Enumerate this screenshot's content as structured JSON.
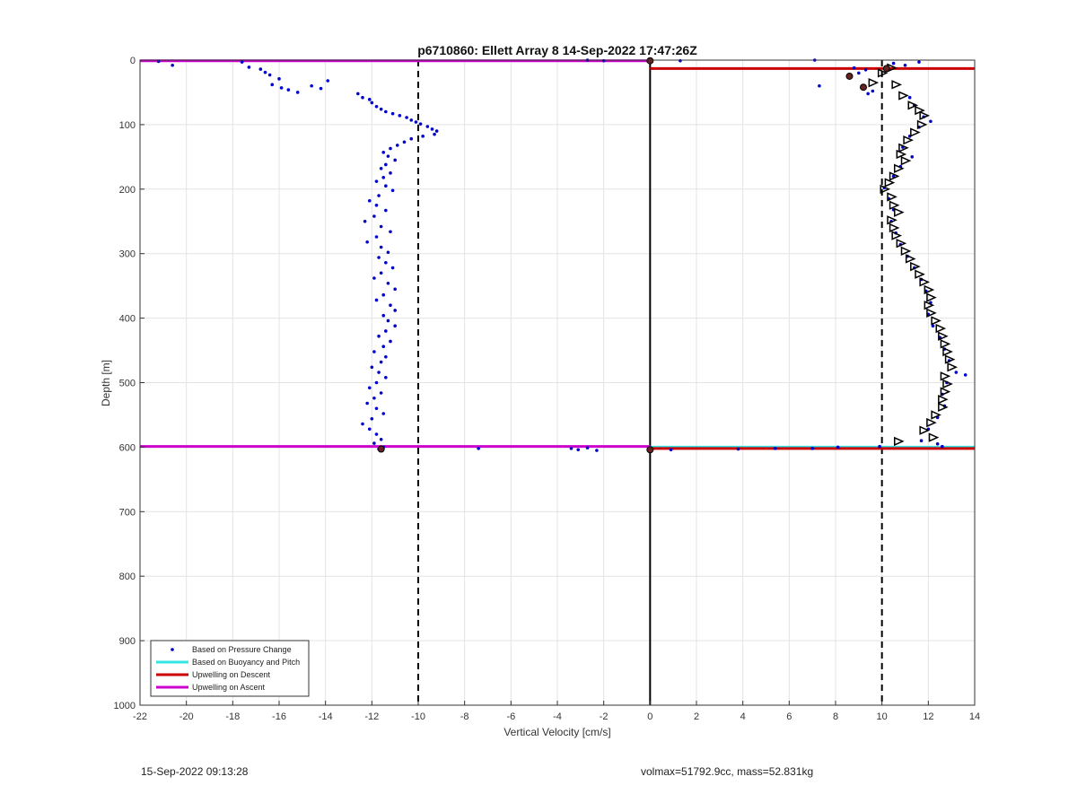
{
  "chart_data": {
    "type": "scatter",
    "title": "p6710860: Ellett Array 8 14-Sep-2022 17:47:26Z",
    "xlabel": "Vertical Velocity [cm/s]",
    "ylabel": "Depth [m]",
    "xlim": [
      -22,
      14
    ],
    "ylim": [
      0,
      1000
    ],
    "y_reversed": true,
    "grid": true,
    "xticks": [
      -22,
      -20,
      -18,
      -16,
      -14,
      -12,
      -10,
      -8,
      -6,
      -4,
      -2,
      0,
      2,
      4,
      6,
      8,
      10,
      12,
      14
    ],
    "yticks": [
      0,
      100,
      200,
      300,
      400,
      500,
      600,
      700,
      800,
      900,
      1000
    ],
    "legend_position": "bottom-left",
    "legend": [
      {
        "label": "Based on Pressure Change",
        "color": "#0000cc",
        "style": "dots"
      },
      {
        "label": "Based on Buoyancy and Pitch",
        "color": "#33e6e6",
        "style": "line"
      },
      {
        "label": "Upwelling on Descent",
        "color": "#cc0000",
        "style": "line"
      },
      {
        "label": "Upwelling on Ascent",
        "color": "#cc00cc",
        "style": "line"
      }
    ],
    "reference_lines": {
      "dashed_x": [
        -10,
        10
      ],
      "solid_x": [
        0
      ]
    },
    "series": [
      {
        "name": "Based on Pressure Change",
        "color": "#0000cc",
        "points": [
          [
            -21.2,
            2
          ],
          [
            -20.6,
            8
          ],
          [
            -17.6,
            3
          ],
          [
            -17.3,
            11
          ],
          [
            -16.8,
            14
          ],
          [
            -16.6,
            19
          ],
          [
            -16.4,
            23
          ],
          [
            -16.0,
            29
          ],
          [
            -16.3,
            38
          ],
          [
            -15.9,
            43
          ],
          [
            -15.6,
            46
          ],
          [
            -15.2,
            50
          ],
          [
            -14.6,
            40
          ],
          [
            -14.2,
            44
          ],
          [
            -13.9,
            32
          ],
          [
            -12.6,
            52
          ],
          [
            -12.4,
            58
          ],
          [
            -12.1,
            61
          ],
          [
            -12.0,
            66
          ],
          [
            -11.8,
            72
          ],
          [
            -11.6,
            76
          ],
          [
            -11.4,
            80
          ],
          [
            -11.1,
            83
          ],
          [
            -10.8,
            86
          ],
          [
            -10.5,
            89
          ],
          [
            -10.3,
            93
          ],
          [
            -10.1,
            96
          ],
          [
            -9.9,
            99
          ],
          [
            -9.6,
            103
          ],
          [
            -9.4,
            107
          ],
          [
            -9.2,
            110
          ],
          [
            -9.3,
            115
          ],
          [
            -9.8,
            118
          ],
          [
            -10.3,
            122
          ],
          [
            -10.6,
            127
          ],
          [
            -10.9,
            132
          ],
          [
            -11.2,
            137
          ],
          [
            -11.5,
            143
          ],
          [
            -11.3,
            149
          ],
          [
            -11.0,
            155
          ],
          [
            -11.4,
            162
          ],
          [
            -11.6,
            168
          ],
          [
            -11.2,
            175
          ],
          [
            -11.5,
            182
          ],
          [
            -11.8,
            188
          ],
          [
            -11.4,
            195
          ],
          [
            -11.1,
            202
          ],
          [
            -11.7,
            210
          ],
          [
            -12.1,
            218
          ],
          [
            -11.8,
            225
          ],
          [
            -11.4,
            233
          ],
          [
            -11.9,
            242
          ],
          [
            -12.3,
            250
          ],
          [
            -11.6,
            258
          ],
          [
            -11.2,
            266
          ],
          [
            -11.8,
            274
          ],
          [
            -12.2,
            282
          ],
          [
            -11.6,
            290
          ],
          [
            -11.3,
            298
          ],
          [
            -11.7,
            306
          ],
          [
            -11.4,
            314
          ],
          [
            -11.1,
            322
          ],
          [
            -11.6,
            330
          ],
          [
            -11.9,
            338
          ],
          [
            -11.3,
            346
          ],
          [
            -11.0,
            355
          ],
          [
            -11.5,
            364
          ],
          [
            -11.8,
            372
          ],
          [
            -11.2,
            380
          ],
          [
            -11.0,
            388
          ],
          [
            -11.5,
            396
          ],
          [
            -11.3,
            404
          ],
          [
            -11.0,
            412
          ],
          [
            -11.4,
            420
          ],
          [
            -11.7,
            428
          ],
          [
            -11.2,
            436
          ],
          [
            -11.5,
            444
          ],
          [
            -11.9,
            452
          ],
          [
            -11.4,
            460
          ],
          [
            -11.6,
            468
          ],
          [
            -12.0,
            476
          ],
          [
            -11.7,
            484
          ],
          [
            -11.4,
            492
          ],
          [
            -11.8,
            500
          ],
          [
            -12.1,
            508
          ],
          [
            -11.6,
            516
          ],
          [
            -11.9,
            524
          ],
          [
            -12.2,
            532
          ],
          [
            -11.8,
            540
          ],
          [
            -11.5,
            548
          ],
          [
            -12.0,
            556
          ],
          [
            -12.4,
            564
          ],
          [
            -12.1,
            572
          ],
          [
            -11.8,
            580
          ],
          [
            -11.6,
            588
          ],
          [
            -11.9,
            594
          ],
          [
            -11.5,
            600
          ],
          [
            -11.7,
            603
          ],
          [
            -7.4,
            602
          ],
          [
            -3.4,
            602
          ],
          [
            -3.1,
            604
          ],
          [
            -2.7,
            601
          ],
          [
            -2.3,
            605
          ],
          [
            -2.7,
            0
          ],
          [
            -2.0,
            1
          ],
          [
            1.3,
            1
          ],
          [
            0.9,
            604
          ],
          [
            3.8,
            603
          ],
          [
            5.4,
            602
          ],
          [
            7.0,
            602
          ],
          [
            8.1,
            600
          ],
          [
            9.9,
            599
          ],
          [
            7.1,
            0
          ],
          [
            8.8,
            12
          ],
          [
            9.3,
            15
          ],
          [
            9.0,
            20
          ],
          [
            7.3,
            40
          ],
          [
            9.4,
            52
          ],
          [
            9.6,
            48
          ],
          [
            10.5,
            5
          ],
          [
            11.0,
            8
          ],
          [
            11.6,
            3
          ],
          [
            11.2,
            58
          ],
          [
            11.4,
            70
          ],
          [
            11.8,
            88
          ],
          [
            12.1,
            95
          ],
          [
            11.6,
            104
          ],
          [
            11.2,
            118
          ],
          [
            10.9,
            135
          ],
          [
            11.3,
            150
          ],
          [
            10.8,
            165
          ],
          [
            10.5,
            180
          ],
          [
            10.1,
            198
          ],
          [
            10.3,
            215
          ],
          [
            10.5,
            232
          ],
          [
            10.4,
            250
          ],
          [
            10.6,
            268
          ],
          [
            10.8,
            286
          ],
          [
            11.1,
            304
          ],
          [
            11.4,
            322
          ],
          [
            11.7,
            340
          ],
          [
            11.9,
            358
          ],
          [
            12.1,
            376
          ],
          [
            12.0,
            394
          ],
          [
            12.2,
            412
          ],
          [
            12.5,
            430
          ],
          [
            12.7,
            448
          ],
          [
            12.9,
            466
          ],
          [
            13.2,
            484
          ],
          [
            13.6,
            488
          ],
          [
            12.8,
            500
          ],
          [
            12.6,
            518
          ],
          [
            12.7,
            536
          ],
          [
            12.4,
            554
          ],
          [
            12.0,
            572
          ],
          [
            11.7,
            590
          ],
          [
            12.4,
            595
          ],
          [
            12.6,
            599
          ]
        ]
      },
      {
        "name": "Based on Buoyancy and Pitch",
        "color": "#33e6e6",
        "segments": [
          [
            [
              0,
              600
            ],
            [
              14,
              600
            ]
          ]
        ]
      },
      {
        "name": "Upwelling on Descent",
        "color": "#cc0000",
        "segments": [
          [
            [
              0,
              13
            ],
            [
              14,
              13
            ]
          ],
          [
            [
              0,
              602
            ],
            [
              14,
              602
            ]
          ]
        ]
      },
      {
        "name": "Upwelling on Ascent",
        "color": "#cc00cc",
        "segments": [
          [
            [
              -22,
              1
            ],
            [
              0,
              1
            ]
          ],
          [
            [
              -22,
              599
            ],
            [
              0,
              599
            ]
          ]
        ]
      },
      {
        "name": "",
        "color": "#000000",
        "markers": "triangles",
        "points": [
          [
            10.4,
            12
          ],
          [
            10.0,
            20
          ],
          [
            9.6,
            35
          ],
          [
            10.6,
            38
          ],
          [
            10.9,
            55
          ],
          [
            11.3,
            70
          ],
          [
            11.6,
            78
          ],
          [
            11.8,
            86
          ],
          [
            11.7,
            100
          ],
          [
            11.4,
            112
          ],
          [
            11.1,
            124
          ],
          [
            10.9,
            136
          ],
          [
            10.8,
            146
          ],
          [
            11.0,
            156
          ],
          [
            10.7,
            168
          ],
          [
            10.5,
            180
          ],
          [
            10.3,
            190
          ],
          [
            10.1,
            200
          ],
          [
            10.4,
            212
          ],
          [
            10.5,
            225
          ],
          [
            10.7,
            236
          ],
          [
            10.4,
            248
          ],
          [
            10.5,
            260
          ],
          [
            10.6,
            272
          ],
          [
            10.8,
            284
          ],
          [
            11.0,
            296
          ],
          [
            11.2,
            308
          ],
          [
            11.4,
            320
          ],
          [
            11.6,
            332
          ],
          [
            11.8,
            344
          ],
          [
            12.0,
            356
          ],
          [
            12.1,
            368
          ],
          [
            12.0,
            380
          ],
          [
            12.1,
            392
          ],
          [
            12.3,
            404
          ],
          [
            12.5,
            416
          ],
          [
            12.6,
            428
          ],
          [
            12.7,
            440
          ],
          [
            12.8,
            452
          ],
          [
            12.9,
            464
          ],
          [
            13.0,
            476
          ],
          [
            12.7,
            490
          ],
          [
            12.8,
            502
          ],
          [
            12.7,
            514
          ],
          [
            12.6,
            526
          ],
          [
            12.6,
            538
          ],
          [
            12.3,
            550
          ],
          [
            12.1,
            562
          ],
          [
            11.8,
            574
          ],
          [
            12.2,
            585
          ],
          [
            10.7,
            591
          ]
        ]
      }
    ]
  },
  "footer": {
    "timestamp": "15-Sep-2022 09:13:28",
    "info": "volmax=51792.9cc, mass=52.831kg"
  }
}
